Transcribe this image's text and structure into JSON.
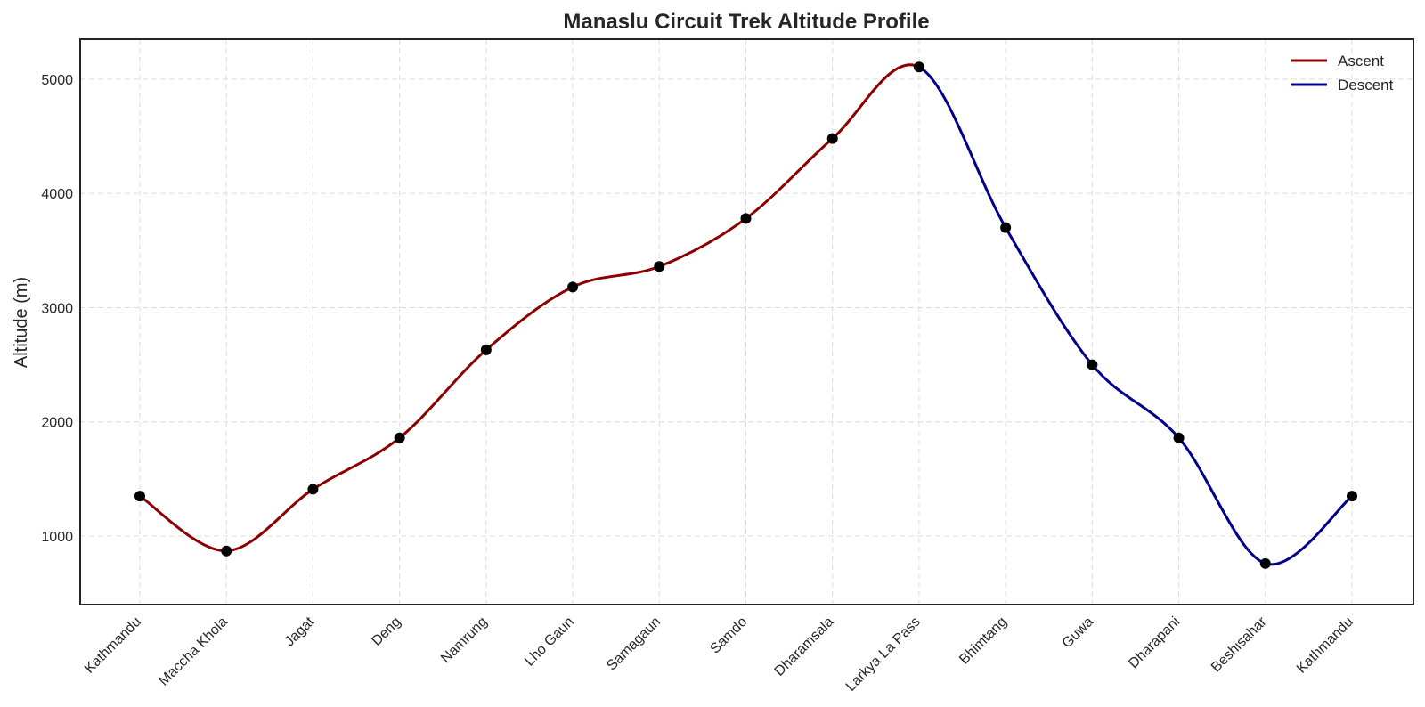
{
  "chart_data": {
    "type": "line",
    "title": "Manaslu Circuit Trek Altitude Profile",
    "xlabel": "",
    "ylabel": "Altitude (m)",
    "categories": [
      "Kathmandu",
      "Maccha Khola",
      "Jagat",
      "Deng",
      "Namrung",
      "Lho Gaun",
      "Samagaun",
      "Samdo",
      "Dharamsala",
      "Larkya La Pass",
      "Bhimtang",
      "Guwa",
      "Dharapani",
      "Beshisahar",
      "Kathmandu"
    ],
    "values": [
      1350,
      870,
      1410,
      1860,
      2630,
      3180,
      3360,
      3780,
      4480,
      5106,
      3700,
      2500,
      1860,
      760,
      1350
    ],
    "ylim": [
      400,
      5350
    ],
    "yticks": [
      1000,
      2000,
      3000,
      4000,
      5000
    ],
    "grid": true,
    "legend_position": "top-right",
    "series": [
      {
        "name": "Ascent",
        "from_index": 0,
        "to_index": 9,
        "color": "#8b0000"
      },
      {
        "name": "Descent",
        "from_index": 9,
        "to_index": 14,
        "color": "#00008b"
      }
    ],
    "marker_color": "#000000"
  }
}
